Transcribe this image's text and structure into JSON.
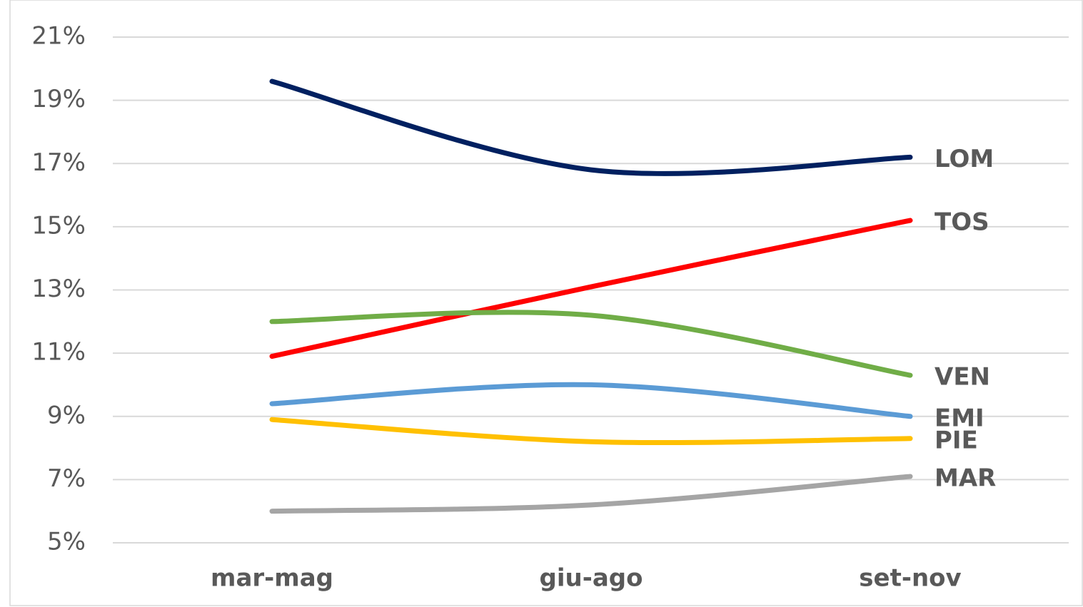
{
  "chart_data": {
    "type": "line",
    "categories": [
      "mar-mag",
      "giu-ago",
      "set-nov"
    ],
    "series": [
      {
        "name": "LOM",
        "color": "#002060",
        "values": [
          19.6,
          16.8,
          17.2
        ]
      },
      {
        "name": "TOS",
        "color": "#ff0000",
        "values": [
          10.9,
          13.1,
          15.2
        ]
      },
      {
        "name": "VEN",
        "color": "#70ad47",
        "values": [
          12.0,
          12.2,
          10.3
        ]
      },
      {
        "name": "EMI",
        "color": "#5b9bd5",
        "values": [
          9.4,
          10.0,
          9.0
        ]
      },
      {
        "name": "PIE",
        "color": "#ffc000",
        "values": [
          8.9,
          8.2,
          8.3
        ]
      },
      {
        "name": "MAR",
        "color": "#a5a5a5",
        "values": [
          6.0,
          6.2,
          7.1
        ]
      }
    ],
    "ylim": [
      5,
      21
    ],
    "yticks": [
      {
        "value": 5,
        "label": "5%"
      },
      {
        "value": 7,
        "label": "7%"
      },
      {
        "value": 9,
        "label": "9%"
      },
      {
        "value": 11,
        "label": "11%"
      },
      {
        "value": 13,
        "label": "13%"
      },
      {
        "value": 15,
        "label": "15%"
      },
      {
        "value": 17,
        "label": "17%"
      },
      {
        "value": 19,
        "label": "19%"
      },
      {
        "value": 21,
        "label": "21%"
      }
    ],
    "grid": true,
    "smooth": true
  }
}
